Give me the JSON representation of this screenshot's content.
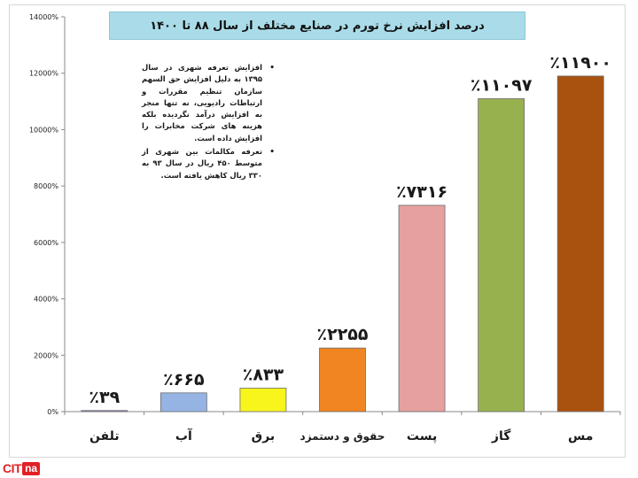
{
  "chart_data": {
    "type": "bar",
    "title": "درصد افزایش نرخ تورم در صنایع مختلف از سال ۸۸ تا ۱۴۰۰",
    "categories": [
      "تلفن",
      "آب",
      "برق",
      "حقوق و دستمزد",
      "پست",
      "گاز",
      "مس"
    ],
    "values": [
      39,
      665,
      833,
      2255,
      7316,
      11097,
      11900
    ],
    "data_labels": [
      "٪۳۹",
      "٪۶۶۵",
      "٪۸۳۳",
      "٪۲۲۵۵",
      "٪۷۳۱۶",
      "٪۱۱۰۹۷",
      "٪۱۱۹۰۰"
    ],
    "colors": [
      "#9e7cc1",
      "#95b3e3",
      "#f7f51c",
      "#f08521",
      "#e6a09f",
      "#97b14f",
      "#a9510f"
    ],
    "ylim": [
      0,
      14000
    ],
    "yticks": [
      0,
      2000,
      4000,
      6000,
      8000,
      10000,
      12000,
      14000
    ],
    "ytick_labels": [
      "0%",
      "2000%",
      "4000%",
      "6000%",
      "8000%",
      "10000%",
      "12000%",
      "14000%"
    ],
    "grid": false,
    "xlabel": "",
    "ylabel": ""
  },
  "notes": [
    "افزایش تعرفه شهری در سال ۱۳۹۵ به دلیل افزایش حق السهم سازمان تنظیم مقررات و ارتباطات رادیویی، نه تنها منجر به افزایش درآمد نگردیده بلکه هزینه های شرکت مخابرات را افزایش داده است.",
    "تعرفه مکالمات بین شهری از متوسط ۴۵۰ ریال در سال ۹۳ به ۳۳۰ ریال کاهش یافته است."
  ],
  "logo": {
    "letters": "CIT",
    "box": "na"
  }
}
